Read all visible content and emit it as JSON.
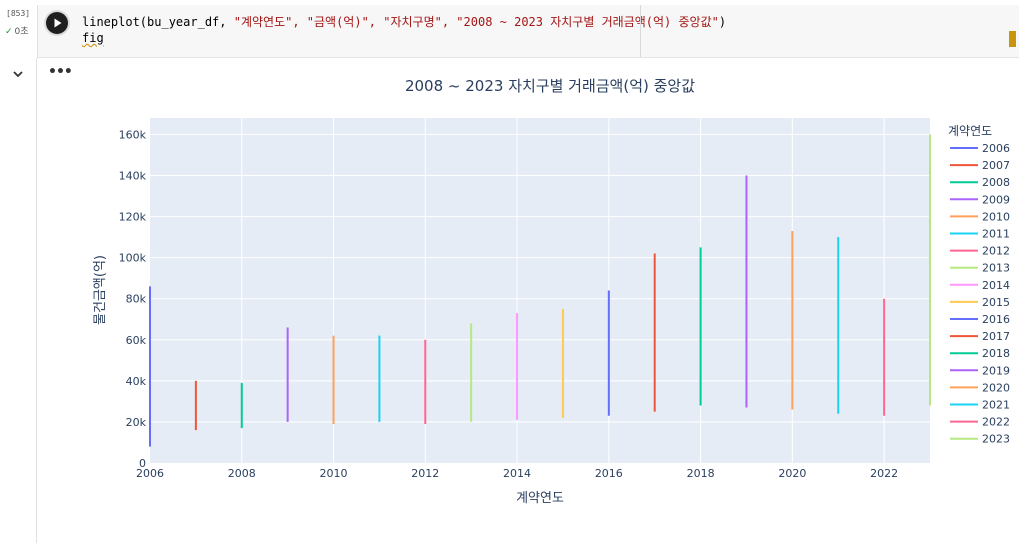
{
  "cell": {
    "exec_count": "[853]",
    "status_time": "0초",
    "code_line1_pre": "lineplot(bu_year_df, ",
    "code_line1_args": "\"계약연도\", \"금액(억)\", \"자치구명\", \"2008 ~ 2023 자치구별 거래금액(억) 중앙값\"",
    "code_line1_post": ")",
    "code_line2": "fig"
  },
  "icons": {
    "run": "play-icon",
    "check": "check-icon",
    "collapse": "chevron-down-icon",
    "more": "more-horizontal-icon"
  },
  "chart_data": {
    "type": "line",
    "title": "2008 ~ 2023 자치구별 거래금액(억) 중앙값",
    "xlabel": "계약연도",
    "ylabel": "물건금액(억)",
    "legend_title": "계약연도",
    "legend_position": "right",
    "xlim": [
      2006,
      2023
    ],
    "ylim": [
      0,
      168000
    ],
    "x_ticks": [
      2006,
      2008,
      2010,
      2012,
      2014,
      2016,
      2018,
      2020,
      2022
    ],
    "y_ticks": [
      0,
      20000,
      40000,
      60000,
      80000,
      100000,
      120000,
      140000,
      160000
    ],
    "y_tick_labels": [
      "0",
      "20k",
      "40k",
      "60k",
      "80k",
      "100k",
      "120k",
      "140k",
      "160k"
    ],
    "grid": true,
    "plot_bg": "#e5ecf6",
    "series": [
      {
        "name": "2006",
        "color": "#636efa",
        "x": [
          2006,
          2006
        ],
        "y": [
          8000,
          86000
        ]
      },
      {
        "name": "2007",
        "color": "#ef553b",
        "x": [
          2007,
          2007
        ],
        "y": [
          16000,
          40000
        ]
      },
      {
        "name": "2008",
        "color": "#00cc96",
        "x": [
          2008,
          2008
        ],
        "y": [
          17000,
          39000
        ]
      },
      {
        "name": "2009",
        "color": "#ab63fa",
        "x": [
          2009,
          2009
        ],
        "y": [
          20000,
          66000
        ]
      },
      {
        "name": "2010",
        "color": "#ffa15a",
        "x": [
          2010,
          2010
        ],
        "y": [
          19000,
          62000
        ]
      },
      {
        "name": "2011",
        "color": "#19d3f3",
        "x": [
          2011,
          2011
        ],
        "y": [
          20000,
          62000
        ]
      },
      {
        "name": "2012",
        "color": "#ff6692",
        "x": [
          2012,
          2012
        ],
        "y": [
          19000,
          60000
        ]
      },
      {
        "name": "2013",
        "color": "#b6e880",
        "x": [
          2013,
          2013
        ],
        "y": [
          20000,
          68000
        ]
      },
      {
        "name": "2014",
        "color": "#ff97ff",
        "x": [
          2014,
          2014
        ],
        "y": [
          21000,
          73000
        ]
      },
      {
        "name": "2015",
        "color": "#fecb52",
        "x": [
          2015,
          2015
        ],
        "y": [
          22000,
          75000
        ]
      },
      {
        "name": "2016",
        "color": "#636efa",
        "x": [
          2016,
          2016
        ],
        "y": [
          23000,
          84000
        ]
      },
      {
        "name": "2017",
        "color": "#ef553b",
        "x": [
          2017,
          2017
        ],
        "y": [
          25000,
          102000
        ]
      },
      {
        "name": "2018",
        "color": "#00cc96",
        "x": [
          2018,
          2018
        ],
        "y": [
          28000,
          105000
        ]
      },
      {
        "name": "2019",
        "color": "#ab63fa",
        "x": [
          2019,
          2019
        ],
        "y": [
          27000,
          140000
        ]
      },
      {
        "name": "2020",
        "color": "#ffa15a",
        "x": [
          2020,
          2020
        ],
        "y": [
          26000,
          113000
        ]
      },
      {
        "name": "2021",
        "color": "#19d3f3",
        "x": [
          2021,
          2021
        ],
        "y": [
          24000,
          110000
        ]
      },
      {
        "name": "2022",
        "color": "#ff6692",
        "x": [
          2022,
          2022
        ],
        "y": [
          23000,
          80000
        ]
      },
      {
        "name": "2023",
        "color": "#b6e880",
        "x": [
          2023,
          2023
        ],
        "y": [
          28000,
          160000
        ]
      }
    ]
  }
}
